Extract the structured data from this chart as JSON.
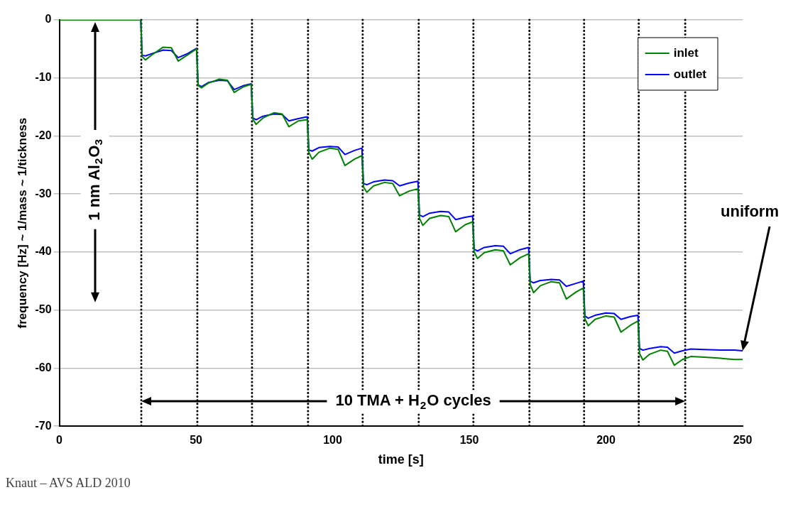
{
  "chart_data": {
    "type": "line",
    "xlabel": "time [s]",
    "ylabel": "frequency [Hz] ~ 1/mass ~ 1/tickness",
    "x": [
      0,
      29.8,
      30.3,
      31.5,
      34,
      38,
      41,
      43.5,
      47,
      50.2,
      50.8,
      52,
      54.5,
      58.5,
      61.5,
      64,
      67.5,
      70.2,
      70.8,
      72,
      74.5,
      78.5,
      81.5,
      84,
      87.5,
      90.7,
      91.3,
      92.5,
      95,
      99,
      102,
      104.5,
      108,
      110.7,
      111.3,
      112.5,
      115,
      119,
      122,
      124.5,
      128,
      131.2,
      131.8,
      133,
      135.5,
      139.5,
      142.5,
      145,
      148.5,
      151.2,
      151.8,
      153,
      155.5,
      159.5,
      162.5,
      165,
      168.5,
      171.7,
      172.3,
      173.5,
      176,
      180,
      183,
      185.5,
      189,
      191.7,
      192.3,
      193.5,
      196,
      200,
      203,
      205.5,
      209,
      211.7,
      212.3,
      213.5,
      216,
      220,
      222.5,
      225,
      228,
      231,
      236,
      242,
      247,
      250
    ],
    "series": [
      {
        "name": "inlet",
        "color": "#008000",
        "values": [
          0,
          0,
          -6.3,
          -6.9,
          -6.0,
          -4.7,
          -4.8,
          -7.1,
          -6.0,
          -5.0,
          -11.3,
          -11.7,
          -10.9,
          -10.2,
          -10.4,
          -12.5,
          -11.5,
          -11.1,
          -17.1,
          -18.0,
          -16.9,
          -16.0,
          -16.2,
          -18.4,
          -17.4,
          -17.2,
          -22.8,
          -24.0,
          -22.8,
          -22.1,
          -22.3,
          -25.1,
          -24.0,
          -23.4,
          -28.8,
          -29.7,
          -28.6,
          -28.0,
          -28.2,
          -30.3,
          -29.5,
          -29.1,
          -34.2,
          -35.4,
          -34.2,
          -33.7,
          -33.9,
          -36.5,
          -35.3,
          -34.8,
          -40.0,
          -41.1,
          -40.1,
          -39.6,
          -39.8,
          -42.2,
          -41.0,
          -40.3,
          -45.6,
          -47.0,
          -45.8,
          -45.1,
          -45.3,
          -48.1,
          -46.9,
          -46.2,
          -51.5,
          -52.7,
          -51.6,
          -51.0,
          -51.2,
          -53.8,
          -52.6,
          -51.9,
          -57.5,
          -58.6,
          -57.6,
          -56.9,
          -57.1,
          -59.5,
          -58.5,
          -58.0,
          -58.1,
          -58.3,
          -58.5,
          -58.5
        ]
      },
      {
        "name": "outlet",
        "color": "#0000ff",
        "values": [
          0,
          0,
          -6.1,
          -6.2,
          -5.8,
          -5.2,
          -5.3,
          -6.5,
          -5.8,
          -4.9,
          -11.2,
          -11.5,
          -10.8,
          -10.4,
          -10.5,
          -12.0,
          -11.3,
          -11.0,
          -16.9,
          -17.2,
          -16.6,
          -16.2,
          -16.3,
          -17.4,
          -17.0,
          -16.7,
          -22.4,
          -22.6,
          -22.0,
          -21.8,
          -21.9,
          -23.2,
          -22.5,
          -22.1,
          -28.2,
          -28.4,
          -27.9,
          -27.6,
          -27.7,
          -28.6,
          -28.1,
          -27.8,
          -33.6,
          -33.9,
          -33.3,
          -33.0,
          -33.1,
          -34.4,
          -34.0,
          -33.8,
          -39.5,
          -39.8,
          -39.2,
          -38.9,
          -39.0,
          -40.3,
          -39.6,
          -39.2,
          -45.0,
          -45.3,
          -44.9,
          -44.7,
          -44.8,
          -45.9,
          -45.4,
          -45.0,
          -51.0,
          -51.4,
          -50.9,
          -50.5,
          -50.6,
          -51.6,
          -51.1,
          -50.9,
          -56.6,
          -56.9,
          -56.6,
          -56.3,
          -56.4,
          -57.4,
          -57.0,
          -56.7,
          -56.8,
          -56.9,
          -56.9,
          -57.0
        ]
      }
    ],
    "xlim": [
      0,
      250
    ],
    "xticks": [
      0,
      50,
      100,
      150,
      200,
      250
    ],
    "ylim": [
      -70,
      0
    ],
    "yticks": [
      -70,
      -60,
      -50,
      -40,
      -30,
      -20,
      -10,
      0
    ],
    "grid": "y",
    "legend": "top right",
    "line_style": "solid",
    "ref_lines": [
      {
        "axis": "x",
        "value": 30,
        "color": "#000000",
        "line_style": "dotted"
      },
      {
        "axis": "x",
        "value": 50.5,
        "color": "#000000",
        "line_style": "dotted"
      },
      {
        "axis": "x",
        "value": 70.5,
        "color": "#000000",
        "line_style": "dotted"
      },
      {
        "axis": "x",
        "value": 91,
        "color": "#000000",
        "line_style": "dotted"
      },
      {
        "axis": "x",
        "value": 111,
        "color": "#000000",
        "line_style": "dotted"
      },
      {
        "axis": "x",
        "value": 131.5,
        "color": "#000000",
        "line_style": "dotted"
      },
      {
        "axis": "x",
        "value": 151.5,
        "color": "#000000",
        "line_style": "dotted"
      },
      {
        "axis": "x",
        "value": 172,
        "color": "#000000",
        "line_style": "dotted"
      },
      {
        "axis": "x",
        "value": 192,
        "color": "#000000",
        "line_style": "dotted"
      },
      {
        "axis": "x",
        "value": 212,
        "color": "#000000",
        "line_style": "dotted"
      },
      {
        "axis": "x",
        "value": 229,
        "color": "#000000",
        "line_style": "dotted"
      }
    ],
    "annotations": [
      "1 nm Al$_{2}$O$_{3}$",
      "10 TMA + H$_{2}$O cycles",
      "uniform",
      "Knaut – AVS ALD 2010"
    ]
  }
}
